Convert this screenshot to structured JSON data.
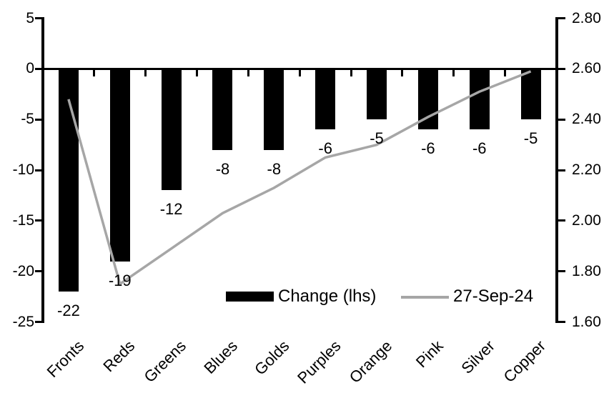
{
  "chart_data": {
    "type": "combo",
    "categories": [
      "Fronts",
      "Reds",
      "Greens",
      "Blues",
      "Golds",
      "Purples",
      "Orange",
      "Pink",
      "Silver",
      "Copper"
    ],
    "series": [
      {
        "name": "Change (lhs)",
        "type": "bar",
        "axis": "left",
        "color": "#000000",
        "values": [
          -22,
          -19,
          -12,
          -8,
          -8,
          -6,
          -5,
          -6,
          -6,
          -5
        ]
      },
      {
        "name": "27-Sep-24",
        "type": "line",
        "axis": "right",
        "color": "#a6a6a6",
        "values": [
          2.48,
          1.75,
          1.89,
          2.03,
          2.13,
          2.25,
          2.3,
          2.41,
          2.51,
          2.59
        ]
      }
    ],
    "bar_data_labels": [
      "-22",
      "-19",
      "-12",
      "-8",
      "-8",
      "-6",
      "-5",
      "-6",
      "-6",
      "-5"
    ],
    "left_axis": {
      "min": -25,
      "max": 5,
      "step": 5,
      "tick_labels": [
        "5",
        "0",
        "-5",
        "-10",
        "-15",
        "-20",
        "-25"
      ]
    },
    "right_axis": {
      "min": 1.6,
      "max": 2.8,
      "step": 0.2,
      "tick_labels": [
        "2.80",
        "2.60",
        "2.40",
        "2.20",
        "2.00",
        "1.80",
        "1.60"
      ]
    },
    "title": "",
    "xlabel": "",
    "ylabel": "",
    "grid": false,
    "legend_position": "inside-bottom",
    "legend": [
      {
        "label": "Change (lhs)",
        "swatch": "bar",
        "color": "#000000"
      },
      {
        "label": "27-Sep-24",
        "swatch": "line",
        "color": "#a6a6a6"
      }
    ]
  },
  "colors": {
    "bar": "#000000",
    "line": "#a6a6a6",
    "axis": "#000000",
    "text": "#000000",
    "background": "#ffffff"
  }
}
